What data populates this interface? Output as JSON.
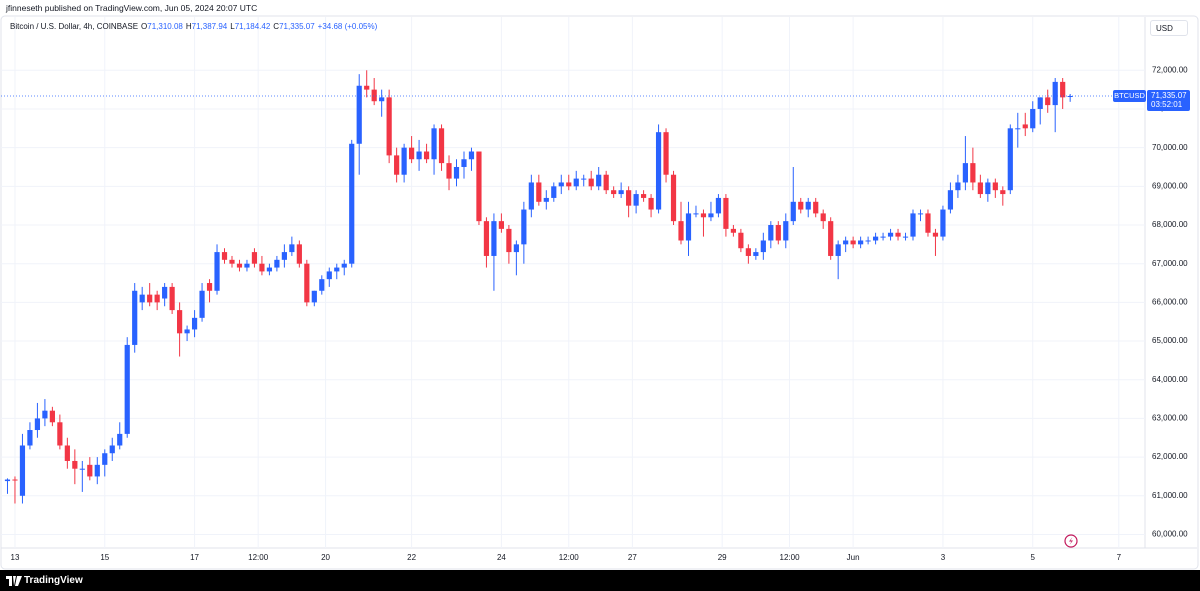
{
  "header": {
    "published": "jfinneseth published on TradingView.com, Jun 05, 2024 20:07 UTC",
    "symbol": "Bitcoin / U.S. Dollar, 4h, COINBASE",
    "ohlc": [
      {
        "key": "O",
        "value": "71,310.08"
      },
      {
        "key": "H",
        "value": "71,387.94"
      },
      {
        "key": "L",
        "value": "71,184.42"
      },
      {
        "key": "C",
        "value": "71,335.07"
      }
    ],
    "change": "+34.68 (+0.05%)"
  },
  "footer": {
    "brand": "TradingView"
  },
  "chart_data": {
    "type": "candlestick",
    "currency": "USD",
    "up_color": "#2962ff",
    "down_color": "#f23645",
    "grid": true,
    "ylim": [
      59650,
      73300
    ],
    "yticks": [
      {
        "value": 60000,
        "label": "60,000.00"
      },
      {
        "value": 61000,
        "label": "61,000.00"
      },
      {
        "value": 62000,
        "label": "62,000.00"
      },
      {
        "value": 63000,
        "label": "63,000.00"
      },
      {
        "value": 64000,
        "label": "64,000.00"
      },
      {
        "value": 65000,
        "label": "65,000.00"
      },
      {
        "value": 66000,
        "label": "66,000.00"
      },
      {
        "value": 67000,
        "label": "67,000.00"
      },
      {
        "value": 68000,
        "label": "68,000.00"
      },
      {
        "value": 69000,
        "label": "69,000.00"
      },
      {
        "value": 70000,
        "label": "70,000.00"
      },
      {
        "value": 71000,
        "label": "71,000.00"
      },
      {
        "value": 72000,
        "label": "72,000.00"
      }
    ],
    "xlim": [
      -1,
      152
    ],
    "xticks": [
      {
        "value": 1,
        "label": "13"
      },
      {
        "value": 13,
        "label": "15"
      },
      {
        "value": 25,
        "label": "17"
      },
      {
        "value": 33.5,
        "label": "12:00"
      },
      {
        "value": 42.5,
        "label": "20"
      },
      {
        "value": 54,
        "label": "22"
      },
      {
        "value": 66,
        "label": "24"
      },
      {
        "value": 75,
        "label": "12:00"
      },
      {
        "value": 83.5,
        "label": "27"
      },
      {
        "value": 95.5,
        "label": "29"
      },
      {
        "value": 104.5,
        "label": "12:00"
      },
      {
        "value": 113,
        "label": "Jun"
      },
      {
        "value": 125,
        "label": "3"
      },
      {
        "value": 137,
        "label": "5"
      },
      {
        "value": 148.5,
        "label": "7"
      }
    ],
    "series": [
      {
        "name": "BTCUSD",
        "open": [
          61380,
          61420,
          61000,
          62300,
          62700,
          63000,
          63200,
          62900,
          62300,
          61900,
          61700,
          61800,
          61500,
          61800,
          62100,
          62300,
          62600,
          64900,
          66000,
          66200,
          66200,
          66100,
          66400,
          65800,
          65200,
          65300,
          65600,
          66500,
          66300,
          67300,
          67100,
          67000,
          66900,
          67300,
          67000,
          66800,
          66900,
          67100,
          67300,
          67500,
          67000,
          66000,
          66300,
          66600,
          66800,
          66900,
          67000,
          70100,
          71600,
          71500,
          71200,
          71300,
          69800,
          69300,
          70000,
          69700,
          69900,
          69700,
          70500,
          69600,
          69200,
          69500,
          69700,
          69900,
          68100,
          67200,
          68100,
          67900,
          67300,
          67500,
          68400,
          69100,
          68600,
          68700,
          69000,
          69100,
          69000,
          69200,
          69200,
          69000,
          69300,
          68900,
          68800,
          68900,
          68500,
          68800,
          68700,
          68400,
          70400,
          69300,
          68100,
          67600,
          68300,
          68300,
          68200,
          68300,
          68700,
          67900,
          67800,
          67400,
          67200,
          67300,
          67600,
          68000,
          67600,
          68100,
          68600,
          68400,
          68600,
          68300,
          68100,
          67200,
          67500,
          67600,
          67500,
          67600,
          67600,
          67700,
          67700,
          67800,
          67700,
          67700,
          68300,
          68300,
          67800,
          67700,
          68400,
          68900,
          69100,
          69600,
          69100,
          68800,
          69100,
          68900,
          68900,
          70500,
          70600,
          70500,
          71000,
          71300,
          71100,
          71700,
          71310.08
        ],
        "high": [
          61450,
          61500,
          62600,
          62900,
          63400,
          63500,
          63300,
          63100,
          62500,
          62200,
          61900,
          62000,
          62000,
          62200,
          62500,
          62900,
          65100,
          66500,
          66400,
          66500,
          66300,
          66500,
          66500,
          66000,
          65400,
          65800,
          66500,
          66600,
          67500,
          67400,
          67200,
          67100,
          67100,
          67400,
          67200,
          67000,
          67200,
          67500,
          67700,
          67600,
          67100,
          66300,
          66700,
          66900,
          67000,
          67100,
          70200,
          71900,
          72000,
          71800,
          71500,
          71500,
          70000,
          70100,
          70300,
          70200,
          70100,
          70600,
          70600,
          69800,
          69700,
          69900,
          70000,
          69900,
          68200,
          68300,
          68300,
          68000,
          67600,
          68600,
          69300,
          69300,
          68900,
          69100,
          69300,
          69300,
          69400,
          69300,
          69400,
          69500,
          69400,
          69000,
          69100,
          69000,
          68900,
          68900,
          68800,
          70600,
          70500,
          69400,
          68600,
          68600,
          68500,
          68400,
          68600,
          68800,
          68800,
          68000,
          67900,
          67500,
          67400,
          67800,
          68100,
          68100,
          68300,
          69500,
          68700,
          68700,
          68700,
          68400,
          68200,
          67600,
          67700,
          67700,
          67700,
          67700,
          67800,
          67800,
          67900,
          67900,
          67800,
          68400,
          68400,
          68400,
          67900,
          68500,
          69100,
          69300,
          70300,
          70000,
          69300,
          69200,
          69200,
          69000,
          70600,
          70900,
          70900,
          71200,
          71300,
          71500,
          71800,
          71800,
          71387.94
        ],
        "low": [
          61050,
          60800,
          60800,
          62200,
          62500,
          62800,
          62800,
          62200,
          61700,
          61300,
          61100,
          61400,
          61300,
          61500,
          61900,
          62200,
          62500,
          64700,
          65800,
          65900,
          65800,
          65900,
          65700,
          64600,
          65000,
          65100,
          65500,
          66000,
          66200,
          67000,
          66900,
          66800,
          66800,
          66900,
          66700,
          66700,
          66800,
          66900,
          67200,
          66900,
          65900,
          65900,
          66200,
          66400,
          66600,
          66700,
          66900,
          69300,
          71300,
          71100,
          70800,
          69600,
          69100,
          69100,
          69600,
          69400,
          69600,
          69300,
          69400,
          68900,
          69000,
          69200,
          69400,
          68000,
          66900,
          66300,
          67800,
          67000,
          66700,
          67000,
          68200,
          68500,
          68400,
          68600,
          68800,
          68900,
          68900,
          69000,
          68900,
          68900,
          68800,
          68700,
          68700,
          68200,
          68300,
          68600,
          68200,
          68300,
          69100,
          68000,
          67500,
          67200,
          68200,
          67700,
          68100,
          68200,
          67700,
          67700,
          67300,
          67000,
          67100,
          67100,
          67400,
          67500,
          67400,
          68000,
          68300,
          68200,
          68200,
          67900,
          67100,
          66600,
          67300,
          67400,
          67400,
          67500,
          67500,
          67600,
          67600,
          67600,
          67600,
          67600,
          68100,
          67700,
          67200,
          67600,
          68300,
          68700,
          68900,
          68900,
          68700,
          68600,
          68700,
          68500,
          68800,
          70000,
          70300,
          70400,
          70600,
          70900,
          70400,
          71000,
          71184.42
        ],
        "close": [
          61420,
          61400,
          62300,
          62700,
          63000,
          63200,
          62900,
          62300,
          61900,
          61700,
          61700,
          61500,
          61800,
          62100,
          62300,
          62600,
          64900,
          66300,
          66200,
          66000,
          66000,
          66400,
          65800,
          65200,
          65300,
          65600,
          66300,
          66300,
          67300,
          67100,
          67000,
          66900,
          67000,
          67000,
          66800,
          66900,
          67100,
          67300,
          67500,
          67000,
          66000,
          66300,
          66600,
          66800,
          66900,
          67000,
          70100,
          71600,
          71500,
          71200,
          71300,
          69800,
          69300,
          70000,
          69700,
          69900,
          69700,
          70500,
          69600,
          69200,
          69500,
          69700,
          69900,
          68100,
          67200,
          68100,
          67900,
          67300,
          67500,
          68400,
          69100,
          68600,
          68700,
          69000,
          69100,
          69000,
          69200,
          69200,
          69000,
          69300,
          68900,
          68800,
          68900,
          68500,
          68800,
          68700,
          68400,
          70400,
          69300,
          68100,
          67600,
          68300,
          68300,
          68200,
          68300,
          68700,
          67900,
          67800,
          67400,
          67200,
          67300,
          67600,
          68000,
          67600,
          68100,
          68600,
          68400,
          68600,
          68300,
          68100,
          67200,
          67500,
          67600,
          67500,
          67600,
          67600,
          67700,
          67700,
          67800,
          67700,
          67700,
          68300,
          68300,
          67800,
          67700,
          68400,
          68900,
          69100,
          69600,
          69100,
          68800,
          69100,
          68900,
          68800,
          70500,
          70500,
          70500,
          71000,
          71300,
          71100,
          71700,
          71300,
          71335.07
        ]
      }
    ],
    "last_price": {
      "value": 71335.07,
      "label": "71,335.07"
    },
    "countdown": "03:52:01"
  }
}
